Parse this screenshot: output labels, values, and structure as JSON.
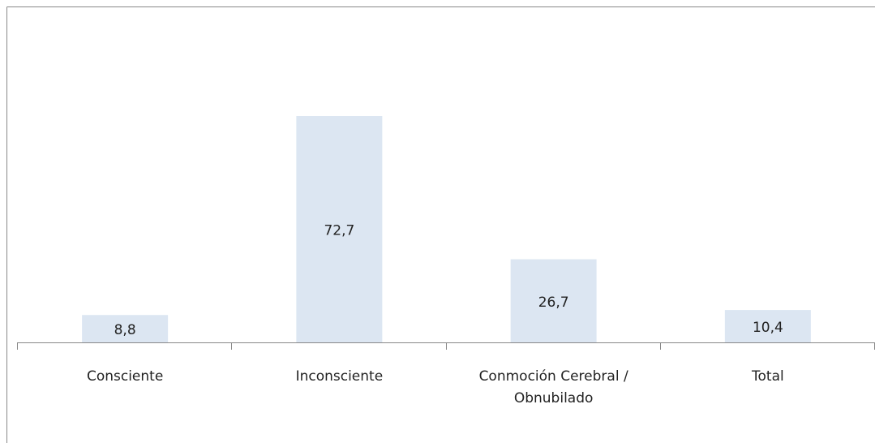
{
  "chart_data": {
    "type": "bar",
    "categories": [
      "Consciente",
      "Inconsciente",
      "Conmoción Cerebral / Obnubilado",
      "Total"
    ],
    "values": [
      8.8,
      72.7,
      26.7,
      10.4
    ],
    "value_labels": [
      "8,8",
      "72,7",
      "26,7",
      "10,4"
    ],
    "color": "#dce6f2"
  }
}
